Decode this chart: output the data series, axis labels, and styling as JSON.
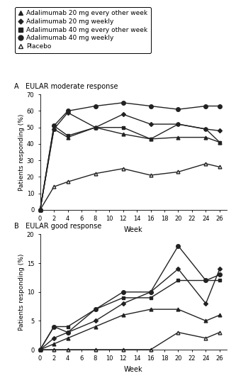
{
  "weeks": [
    0,
    2,
    4,
    8,
    12,
    16,
    20,
    24,
    26
  ],
  "panel_A": {
    "title": "A   EULAR moderate response",
    "ylabel": "Patients responding (%)",
    "xlabel": "Week",
    "ylim": [
      0,
      70
    ],
    "yticks": [
      0,
      10,
      20,
      30,
      40,
      50,
      60,
      70
    ],
    "xticks": [
      0,
      2,
      4,
      6,
      8,
      10,
      12,
      14,
      16,
      18,
      20,
      22,
      24,
      26
    ],
    "xticklabels": [
      "0",
      "2",
      "4",
      "6",
      "8",
      "10",
      "12",
      "14",
      "16",
      "18",
      "20",
      "22",
      "24",
      "26"
    ],
    "ada20eow": [
      0,
      49,
      44,
      50,
      46,
      43,
      44,
      44,
      41
    ],
    "ada20w": [
      0,
      49,
      59,
      50,
      58,
      52,
      52,
      49,
      48
    ],
    "ada40eow": [
      0,
      51,
      45,
      50,
      50,
      43,
      52,
      49,
      41
    ],
    "ada40w": [
      0,
      51,
      60,
      63,
      65,
      63,
      61,
      63,
      63
    ],
    "placebo": [
      0,
      14,
      17,
      22,
      25,
      21,
      23,
      28,
      26
    ]
  },
  "panel_B": {
    "title": "B   EULAR good response",
    "ylabel": "Patients responding (%)",
    "xlabel": "Week",
    "ylim": [
      0,
      20
    ],
    "yticks": [
      0,
      5,
      10,
      15,
      20
    ],
    "xticks": [
      0,
      2,
      4,
      6,
      8,
      10,
      12,
      14,
      16,
      18,
      20,
      22,
      24,
      26
    ],
    "xticklabels": [
      "0",
      "2",
      "4",
      "6",
      "8",
      "10",
      "12",
      "14",
      "16",
      "18",
      "20",
      "22",
      "24",
      "26"
    ],
    "ada20eow": [
      0,
      1,
      2,
      4,
      6,
      7,
      7,
      5,
      6
    ],
    "ada20w": [
      0,
      2,
      3,
      5,
      8,
      10,
      14,
      8,
      14
    ],
    "ada40eow": [
      0,
      4,
      4,
      7,
      9,
      9,
      12,
      12,
      12
    ],
    "ada40w": [
      0,
      4,
      3,
      7,
      10,
      10,
      18,
      12,
      13
    ],
    "placebo": [
      0,
      0,
      0,
      0,
      0,
      0,
      3,
      2,
      3
    ]
  },
  "legend": {
    "ada20eow_label": "Adalimumab 20 mg every other week",
    "ada20w_label": "Adalimumab 20 mg weekly",
    "ada40eow_label": "Adalimumab 40 mg every other week",
    "ada40w_label": "Adalimumab 40 mg weekly",
    "placebo_label": "Placebo"
  },
  "fig_width": 3.33,
  "fig_height": 5.33,
  "dpi": 100
}
